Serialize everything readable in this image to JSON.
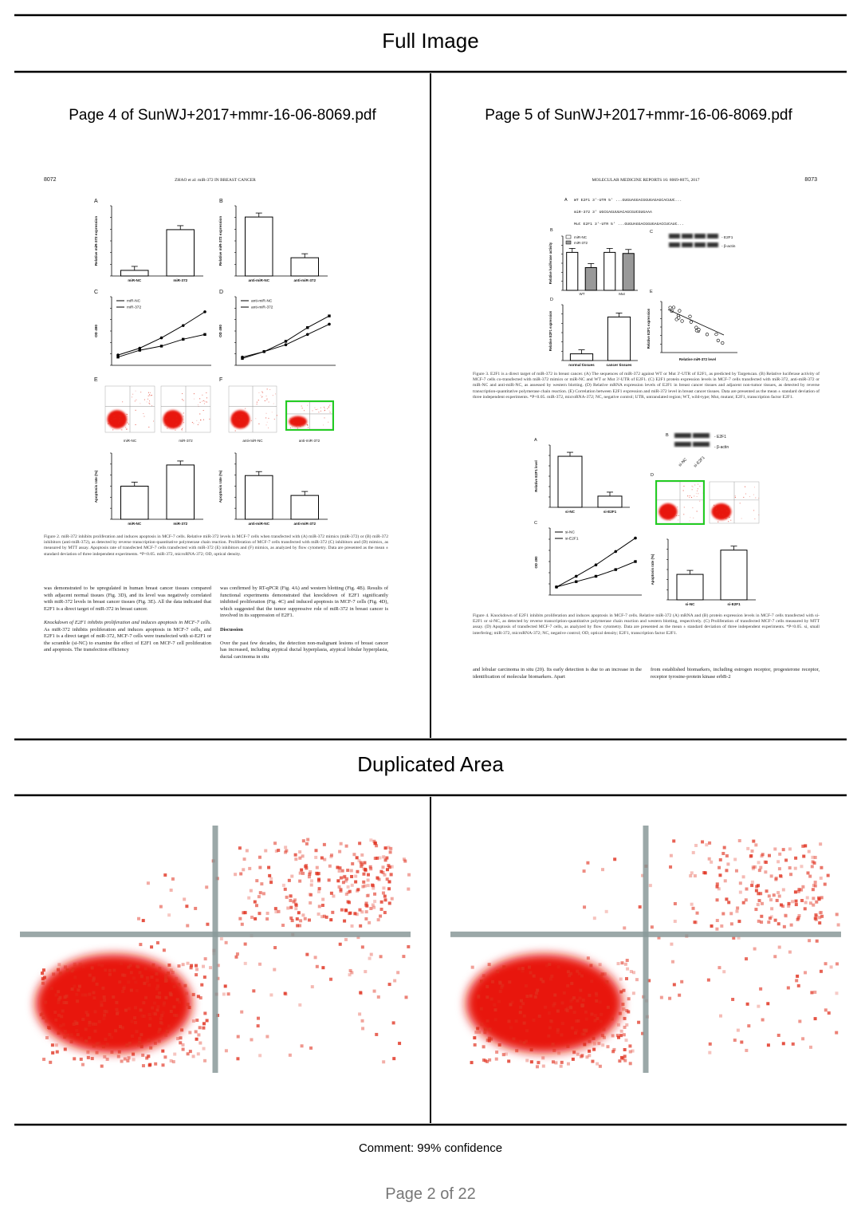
{
  "header": {
    "title": "Full Image"
  },
  "left_page": {
    "title": "Page 4 of SunWJ+2017+mmr-16-06-8069.pdf",
    "page_number": "8072",
    "running_head": "ZHAO et al: miR-372 IN BREAST CANCER",
    "panels": [
      "A",
      "B",
      "C",
      "D",
      "E",
      "F"
    ],
    "labels": {
      "mir_nc": "miR-NC",
      "mir_372": "miR-372",
      "anti_nc": "anti-miR-NC",
      "anti_372": "anti-miR-372",
      "expr": "Relative miR-372 expression",
      "od": "OD 490",
      "apop": "Apoptosis rate (%)"
    },
    "figure_caption": "Figure 2. miR-372 inhibits proliferation and induces apoptosis in MCF-7 cells. Relative miR-372 levels in MCF-7 cells when transfected with (A) miR-372 mimics (miR-372) or (B) miR-372 inhibitors (anti-miR-372), as detected by reverse transcription-quantitative polymerase chain reaction. Proliferation of MCF-7 cells transfected with miR-372 (C) inhibitors and (D) mimics, as measured by MTT assay. Apoptosis rate of transfected MCF-7 cells transfected with miR-372 (E) inhibitors and (F) mimics, as analyzed by flow cytometry. Data are presented as the mean ± standard deviation of three independent experiments. *P<0.05. miR-372, microRNA-372; OD, optical density.",
    "col1_text": "was demonstrated to be upregulated in human breast cancer tissues compared with adjacent normal tissues (Fig. 3D), and its level was negatively correlated with miR-372 levels in breast cancer tissues (Fig. 3E). All the data indicated that E2F1 is a direct target of miR-372 in breast cancer.",
    "col1_heading": "Knockdown of E2F1 inhibits proliferation and induces apoptosis in MCF-7 cells.",
    "col1_text2": "As miR-372 inhibits proliferation and induces apoptosis in MCF-7 cells, and E2F1 is a direct target of miR-372, MCF-7 cells were transfected with si-E2F1 or the scramble (si-NC) to examine the effect of E2F1 on MCF-7 cell proliferation and apoptosis. The transfection efficiency",
    "col2_text": "was confirmed by RT-qPCR (Fig. 4A) and western blotting (Fig. 4B). Results of functional experiments demonstrated that knockdown of E2F1 significantly inhibited proliferation (Fig. 4C) and induced apoptosis in MCF-7 cells (Fig. 4D), which suggested that the tumor suppressive role of miR-372 in breast cancer is involved in its suppression of E2F1.",
    "col2_heading": "Discussion",
    "col2_text2": "Over the past few decades, the detection non-malignant lesions of breast cancer has increased, including atypical ductal hyperplasia, atypical lobular hyperplasia, ductal carcinoma in situ"
  },
  "right_page": {
    "title": "Page 5 of SunWJ+2017+mmr-16-06-8069.pdf",
    "page_number": "8073",
    "running_head": "MOLECULAR MEDICINE REPORTS 16: 8069-8075, 2017",
    "panels": [
      "A",
      "B",
      "C",
      "D",
      "E"
    ],
    "sequences": [
      "WT E2F1 3'-UTR 5' ...GUGUAGGACGGUGAGAGCACUUC...",
      "miR-372 3' UGCGAGUUUACAGCGUCGUGAAA",
      "Mut E2F1 3'-UTR 5' ...GUGUAGGACGGUGAGACCUCAUC..."
    ],
    "labels": {
      "mir_nc": "miR-NC",
      "mir_372": "miR-372",
      "wt": "WT",
      "mut": "Mut",
      "e2f1": "- E2F1",
      "actin": "- β-actin",
      "normal": "normal tissues",
      "cancer": "cancer tissues",
      "si_nc": "si-NC",
      "si_e2f1": "si-E2F1",
      "luc": "Relative luciferase activity",
      "e2f1_expr": "Relative E2F1 expression",
      "mir_level": "Relative miR-372 level",
      "e2f1_level": "Relative E2F1 level",
      "od": "OD 490",
      "apop": "Apoptosis rate (%)"
    },
    "figure3_caption": "Figure 3. E2F1 is a direct target of miR-372 in breast cancer. (A) The sequences of miR-372 against WT or Mut 3'-UTR of E2F1, as predicted by Targetscan. (B) Relative luciferase activity of MCF-7 cells co-transfected with miR-372 mimics or miR-NC and WT or Mut 3'-UTR of E2F1. (C) E2F1 protein expression levels in MCF-7 cells transfected with miR-372, anti-miR-372 or miR-NC and anti-miR-NC, as assessed by western blotting. (D) Relative mRNA expression levels of E2F1 in breast cancer tissues and adjacent non-tumor tissues, as detected by reverse transcription-quantitative polymerase chain reaction. (E) Correlation between E2F1 expression and miR-372 level in breast cancer tissues. Data are presented as the mean ± standard deviation of three independent experiments. *P<0.05. miR-372, microRNA-372; NC, negative control; UTR, untranslated region; WT, wild-type; Mut, mutant; E2F1, transcription factor E2F1.",
    "figure4_caption": "Figure 4. Knockdown of E2F1 inhibits proliferation and induces apoptosis in MCF-7 cells. Relative miR-372 (A) mRNA and (B) protein expression levels in MCF-7 cells transfected with si-E2F1 or si-NC, as detected by reverse transcription-quantitative polymerase chain reaction and western blotting, respectively. (C) Proliferation of transfected MCF-7 cells measured by MTT assay. (D) Apoptosis of transfected MCF-7 cells, as analyzed by flow cytometry. Data are presented as the mean ± standard deviation of three independent experiments. *P<0.05. si, small interfering; miR-372, microRNA-372; NC, negative control; OD, optical density; E2F1, transcription factor E2F1.",
    "col1_text": "and lobular carcinoma in situ (20). Its early detection is due to an increase in the identification of molecular biomarkers. Apart",
    "col2_text": "from established biomarkers, including estrogen receptor, progesterone receptor, receptor tyrosine-protein kinase erbB-2"
  },
  "duplicated": {
    "title": "Duplicated Area"
  },
  "comment": "Comment: 99% confidence",
  "footer": "Page 2 of 22"
}
